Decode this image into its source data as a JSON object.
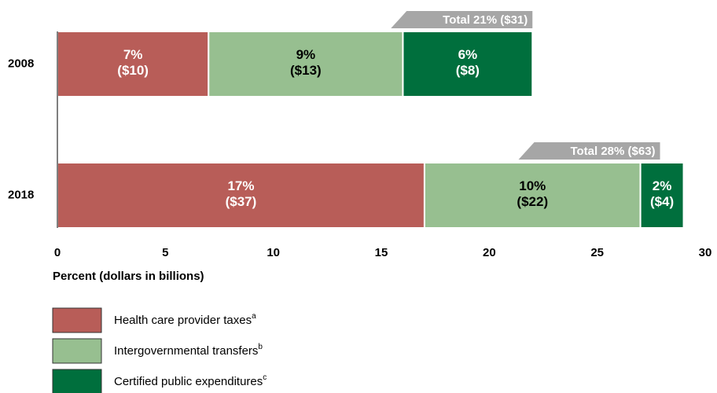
{
  "chart_data": {
    "type": "stacked_barh",
    "categories": [
      "2008",
      "2018"
    ],
    "series": [
      {
        "name": "Health care provider taxes",
        "footnote": "a",
        "color": "#b85d58",
        "label_color": "#ffffff",
        "values": [
          7,
          17
        ],
        "value_labels": [
          "7%",
          "17%"
        ],
        "dollar_labels": [
          "($10)",
          "($37)"
        ]
      },
      {
        "name": "Intergovernmental transfers",
        "footnote": "b",
        "color": "#97bf90",
        "label_color": "#000000",
        "values": [
          9,
          10
        ],
        "value_labels": [
          "9%",
          "10%"
        ],
        "dollar_labels": [
          "($13)",
          "($22)"
        ]
      },
      {
        "name": "Certified public expenditures",
        "footnote": "c",
        "color": "#006f3d",
        "label_color": "#ffffff",
        "values": [
          6,
          2
        ],
        "value_labels": [
          "6%",
          "2%"
        ],
        "dollar_labels": [
          "($8)",
          "($4)"
        ]
      }
    ],
    "totals": [
      "Total 21% ($31)",
      "Total 28% ($63)"
    ],
    "xlabel": "Percent (dollars in billions)",
    "xlim": [
      0,
      30
    ],
    "xticks": [
      0,
      5,
      10,
      15,
      20,
      25,
      30
    ]
  }
}
